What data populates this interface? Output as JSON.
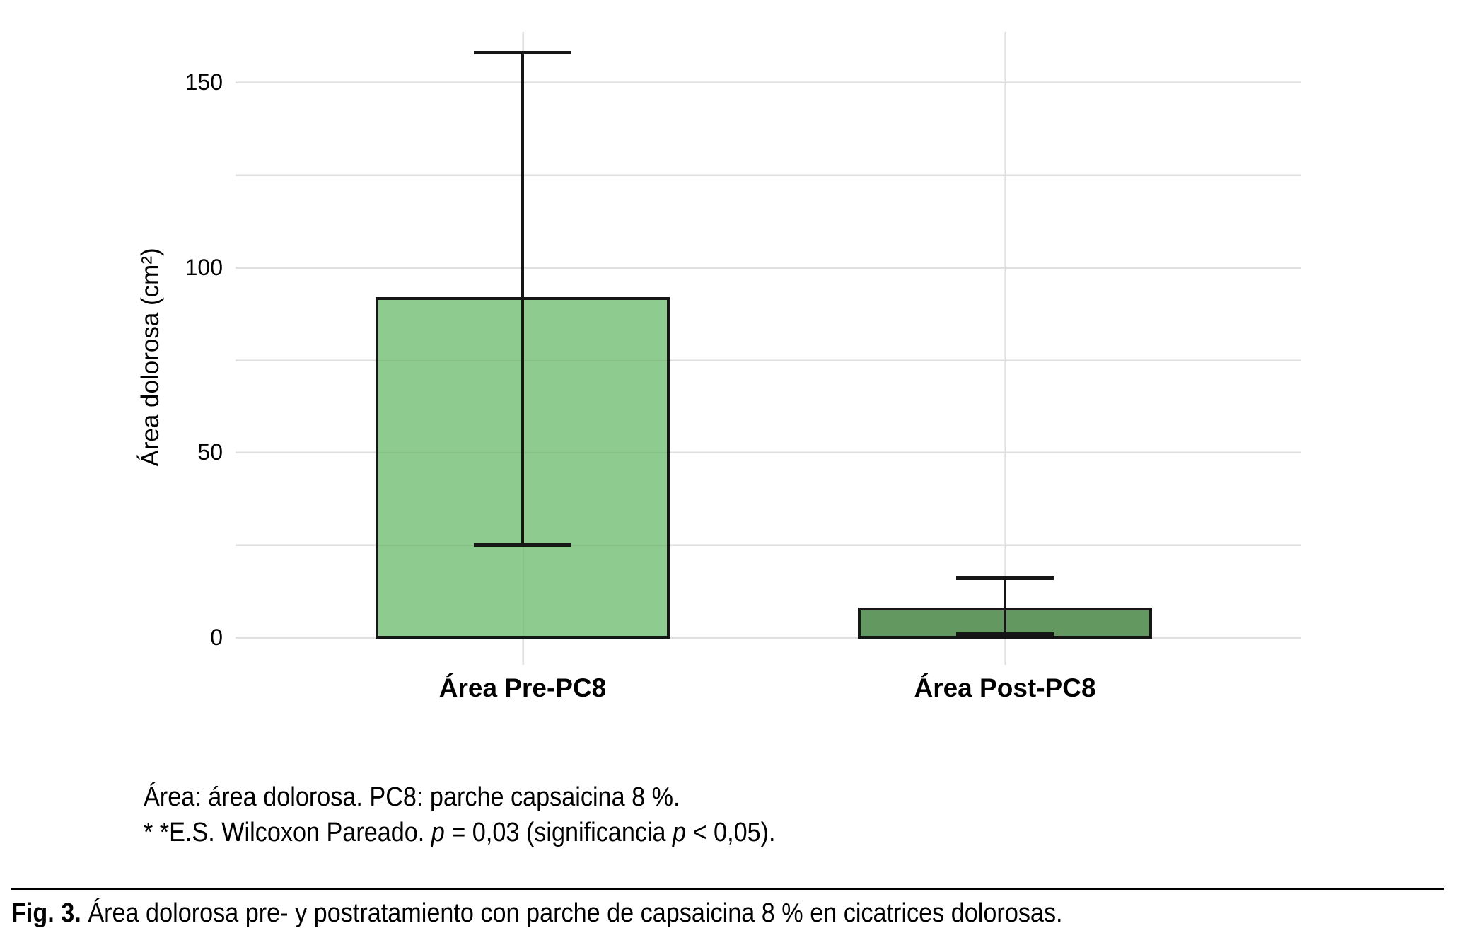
{
  "chart_data": {
    "type": "bar",
    "categories": [
      "Área Pre-PC8",
      "Área Post-PC8"
    ],
    "values": [
      92,
      8
    ],
    "error_low": [
      25,
      1
    ],
    "error_high": [
      158,
      16
    ],
    "title": "",
    "xlabel": "",
    "ylabel": "Área dolorosa (cm²)",
    "yticks": [
      0,
      50,
      100,
      150
    ],
    "ytick_labels": [
      "0",
      "50",
      "100",
      "150"
    ],
    "gridlines_at": [
      0,
      25,
      50,
      75,
      100,
      125,
      150
    ],
    "ylim": [
      0,
      162
    ],
    "grid": true,
    "legend": false,
    "bar_colors": [
      "#8ECB8E",
      "#639961"
    ],
    "edge_color": "#161616",
    "grid_color": "#ececec"
  },
  "notes": {
    "line1": "Área: área dolorosa. PC8: parche capsaicina 8 %.",
    "line2_seg1": "* *E.S. Wilcoxon Pareado. ",
    "line2_p1": "p",
    "line2_seg2": " = 0,03 (significancia ",
    "line2_p2": "p",
    "line2_seg3": " < 0,05)."
  },
  "fig_caption": {
    "label": "Fig. 3.",
    "text": " Área dolorosa pre- y postratamiento con parche de capsaicina 8 % en cicatrices dolorosas."
  }
}
